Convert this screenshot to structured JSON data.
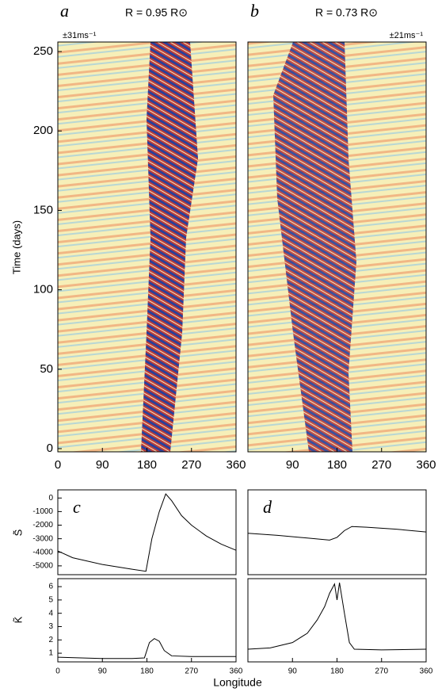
{
  "chart_data": [
    {
      "type": "heatmap",
      "panel_label": "a",
      "title": "R = 0.95 R⊙",
      "scale_label": "±31ms⁻¹",
      "ylabel": "Time (days)",
      "xlim": [
        0,
        360
      ],
      "xticks": [
        0,
        90,
        180,
        270,
        360
      ],
      "ylim": [
        -2,
        256
      ],
      "yticks": [
        0,
        50,
        100,
        150,
        200,
        250
      ]
    },
    {
      "type": "heatmap",
      "panel_label": "b",
      "title": "R = 0.73 R⊙",
      "scale_label": "±21ms⁻¹",
      "xlim": [
        0,
        360
      ],
      "xticks": [
        90,
        180,
        270,
        360
      ],
      "ylim": [
        -2,
        256
      ]
    },
    {
      "type": "line",
      "panel_label": "c",
      "ylabel": "S̃",
      "xlim": [
        0,
        360
      ],
      "ylim": [
        -5650,
        600
      ],
      "yticks": [
        0,
        -1000,
        -2000,
        -3000,
        -4000,
        -5000
      ],
      "x": [
        0,
        30,
        90,
        150,
        178,
        190,
        205,
        218,
        230,
        250,
        270,
        300,
        330,
        360
      ],
      "values": [
        -3900,
        -4400,
        -4900,
        -5250,
        -5400,
        -3000,
        -1000,
        300,
        -200,
        -1300,
        -2000,
        -2800,
        -3400,
        -3850
      ],
      "color": "#000000"
    },
    {
      "type": "line",
      "panel_label": "d",
      "xlim": [
        0,
        360
      ],
      "ylim": [
        -5650,
        600
      ],
      "x": [
        0,
        60,
        120,
        165,
        180,
        195,
        210,
        240,
        300,
        360
      ],
      "values": [
        -2600,
        -2750,
        -2950,
        -3100,
        -2900,
        -2400,
        -2100,
        -2150,
        -2300,
        -2500
      ],
      "color": "#000000"
    },
    {
      "type": "line",
      "ylabel": "K̃",
      "xlabel": "Longitude",
      "xlim": [
        0,
        360
      ],
      "xticks": [
        0,
        90,
        180,
        270,
        360
      ],
      "ylim": [
        0.35,
        6.6
      ],
      "yticks": [
        1,
        2,
        3,
        4,
        5,
        6
      ],
      "x": [
        0,
        90,
        150,
        175,
        185,
        195,
        205,
        215,
        230,
        270,
        360
      ],
      "values": [
        0.7,
        0.6,
        0.6,
        0.65,
        1.8,
        2.1,
        1.9,
        1.2,
        0.8,
        0.75,
        0.75
      ],
      "color": "#000000"
    },
    {
      "type": "line",
      "xlim": [
        0,
        360
      ],
      "xticks": [
        90,
        180,
        270,
        360
      ],
      "ylim": [
        0.35,
        6.6
      ],
      "x": [
        0,
        45,
        90,
        120,
        140,
        155,
        165,
        175,
        180,
        185,
        195,
        205,
        215,
        270,
        360
      ],
      "values": [
        1.3,
        1.4,
        1.8,
        2.5,
        3.5,
        4.5,
        5.5,
        6.2,
        5.0,
        6.3,
        4.0,
        1.8,
        1.3,
        1.25,
        1.3
      ],
      "color": "#000000"
    }
  ]
}
